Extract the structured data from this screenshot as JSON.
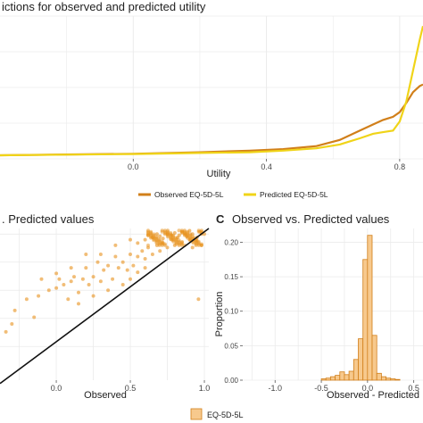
{
  "chart_data": [
    {
      "type": "line",
      "title": "ictions for observed and predicted utility",
      "xlabel": "Utility",
      "x_ticks": [
        0.0,
        0.4,
        0.8
      ],
      "x_tick_labels": [
        "0.0",
        "0.4",
        "0.8"
      ],
      "xlim": [
        -0.4,
        0.87
      ],
      "legend_position": "bottom",
      "grid": true,
      "series": [
        {
          "name": "Observed EQ-5D-5L",
          "color": "#d17f1a",
          "x": [
            -0.4,
            -0.2,
            0.0,
            0.2,
            0.35,
            0.45,
            0.55,
            0.62,
            0.68,
            0.72,
            0.75,
            0.78,
            0.8,
            0.82,
            0.84,
            0.86,
            0.87
          ],
          "y": [
            0.0,
            0.05,
            0.1,
            0.2,
            0.3,
            0.4,
            0.6,
            1.0,
            1.6,
            2.0,
            2.3,
            2.5,
            2.8,
            3.4,
            4.1,
            4.5,
            4.6
          ]
        },
        {
          "name": "Predicted EQ-5D-5L",
          "color": "#f0d418",
          "x": [
            -0.4,
            -0.2,
            0.0,
            0.2,
            0.35,
            0.45,
            0.55,
            0.62,
            0.68,
            0.72,
            0.75,
            0.78,
            0.8,
            0.82,
            0.84,
            0.86,
            0.87
          ],
          "y": [
            0.0,
            0.04,
            0.08,
            0.15,
            0.2,
            0.3,
            0.45,
            0.7,
            1.1,
            1.4,
            1.5,
            1.6,
            2.2,
            3.5,
            5.5,
            7.5,
            8.4
          ]
        }
      ]
    },
    {
      "type": "scatter",
      "title": ". Predicted values",
      "xlabel": "Observed",
      "x_ticks": [
        0.0,
        0.5,
        1.0
      ],
      "x_tick_labels": [
        "0.0",
        "0.5",
        "1.0"
      ],
      "xlim": [
        -0.38,
        1.03
      ],
      "ylim": [
        -0.3,
        1.05
      ],
      "grid": true,
      "point_color": "#e8911c",
      "reference_line": {
        "x": [
          -0.38,
          1.03
        ],
        "y": [
          -0.33,
          1.05
        ]
      },
      "points": [
        [
          -0.28,
          0.32
        ],
        [
          -0.3,
          0.2
        ],
        [
          -0.34,
          0.13
        ],
        [
          -0.15,
          0.26
        ],
        [
          -0.2,
          0.42
        ],
        [
          -0.12,
          0.45
        ],
        [
          -0.05,
          0.5
        ],
        [
          0.0,
          0.52
        ],
        [
          0.02,
          0.6
        ],
        [
          0.05,
          0.55
        ],
        [
          0.08,
          0.42
        ],
        [
          0.1,
          0.58
        ],
        [
          0.12,
          0.62
        ],
        [
          0.15,
          0.48
        ],
        [
          0.18,
          0.6
        ],
        [
          0.2,
          0.7
        ],
        [
          0.22,
          0.55
        ],
        [
          0.25,
          0.62
        ],
        [
          0.28,
          0.75
        ],
        [
          0.3,
          0.58
        ],
        [
          0.32,
          0.68
        ],
        [
          0.35,
          0.72
        ],
        [
          0.38,
          0.6
        ],
        [
          0.4,
          0.8
        ],
        [
          0.42,
          0.7
        ],
        [
          0.45,
          0.75
        ],
        [
          0.48,
          0.68
        ],
        [
          0.5,
          0.82
        ],
        [
          0.52,
          0.72
        ],
        [
          0.55,
          0.8
        ],
        [
          0.58,
          0.85
        ],
        [
          0.6,
          0.78
        ],
        [
          0.62,
          0.88
        ],
        [
          0.65,
          0.82
        ],
        [
          0.68,
          0.9
        ],
        [
          0.7,
          0.85
        ],
        [
          0.72,
          0.92
        ],
        [
          0.75,
          0.88
        ],
        [
          0.78,
          0.95
        ],
        [
          0.8,
          0.9
        ],
        [
          0.82,
          0.97
        ],
        [
          0.85,
          0.93
        ],
        [
          0.88,
          0.98
        ],
        [
          0.9,
          0.95
        ],
        [
          0.92,
          1.0
        ],
        [
          0.95,
          0.97
        ],
        [
          0.97,
          1.02
        ],
        [
          1.0,
          1.0
        ],
        [
          0.6,
          0.95
        ],
        [
          0.65,
          0.97
        ],
        [
          0.7,
          0.98
        ],
        [
          0.75,
          1.0
        ],
        [
          0.8,
          1.01
        ],
        [
          0.85,
          1.02
        ],
        [
          0.9,
          1.03
        ],
        [
          0.95,
          0.94
        ],
        [
          0.92,
          0.88
        ],
        [
          0.98,
          0.9
        ],
        [
          0.96,
          0.42
        ],
        [
          0.3,
          0.82
        ],
        [
          0.1,
          0.7
        ],
        [
          0.0,
          0.65
        ],
        [
          -0.1,
          0.6
        ],
        [
          0.15,
          0.38
        ],
        [
          0.45,
          0.55
        ],
        [
          0.5,
          0.6
        ],
        [
          0.55,
          0.66
        ],
        [
          0.35,
          0.5
        ],
        [
          0.25,
          0.45
        ],
        [
          0.6,
          0.7
        ],
        [
          0.2,
          0.82
        ],
        [
          0.4,
          0.9
        ],
        [
          0.5,
          0.95
        ],
        [
          0.55,
          0.92
        ],
        [
          0.62,
          0.99
        ],
        [
          0.68,
          1.0
        ],
        [
          0.72,
          0.96
        ],
        [
          0.78,
          0.99
        ],
        [
          0.83,
          0.99
        ],
        [
          0.87,
          1.0
        ]
      ]
    },
    {
      "panel_letter": "C",
      "type": "histogram",
      "title": "Observed vs. Predicted values",
      "xlabel": "Observed - Predicted",
      "ylabel": "Proportion",
      "x_ticks": [
        -1.0,
        -0.5,
        0.0,
        0.5
      ],
      "x_tick_labels": [
        "-1.0",
        "-0.5",
        "0.0",
        "0.5"
      ],
      "y_ticks": [
        0.0,
        0.05,
        0.1,
        0.15,
        0.2
      ],
      "y_tick_labels": [
        "0.00",
        "0.05",
        "0.10",
        "0.15",
        "0.20"
      ],
      "xlim": [
        -1.35,
        0.6
      ],
      "ylim": [
        0.0,
        0.22
      ],
      "grid": true,
      "bar_fill": "#f7c98d",
      "bar_stroke": "#d17f1a",
      "bin_width": 0.05,
      "bin_starts": [
        -0.5,
        -0.45,
        -0.4,
        -0.35,
        -0.3,
        -0.25,
        -0.2,
        -0.15,
        -0.1,
        -0.05,
        0.0,
        0.05,
        0.1,
        0.15,
        0.2,
        0.25,
        0.3
      ],
      "proportions": [
        0.002,
        0.003,
        0.005,
        0.007,
        0.012,
        0.008,
        0.013,
        0.03,
        0.06,
        0.175,
        0.21,
        0.065,
        0.01,
        0.005,
        0.003,
        0.002,
        0.001
      ],
      "legend_position": "bottom",
      "legend": [
        {
          "name": "EQ-5D-5L"
        }
      ]
    }
  ]
}
